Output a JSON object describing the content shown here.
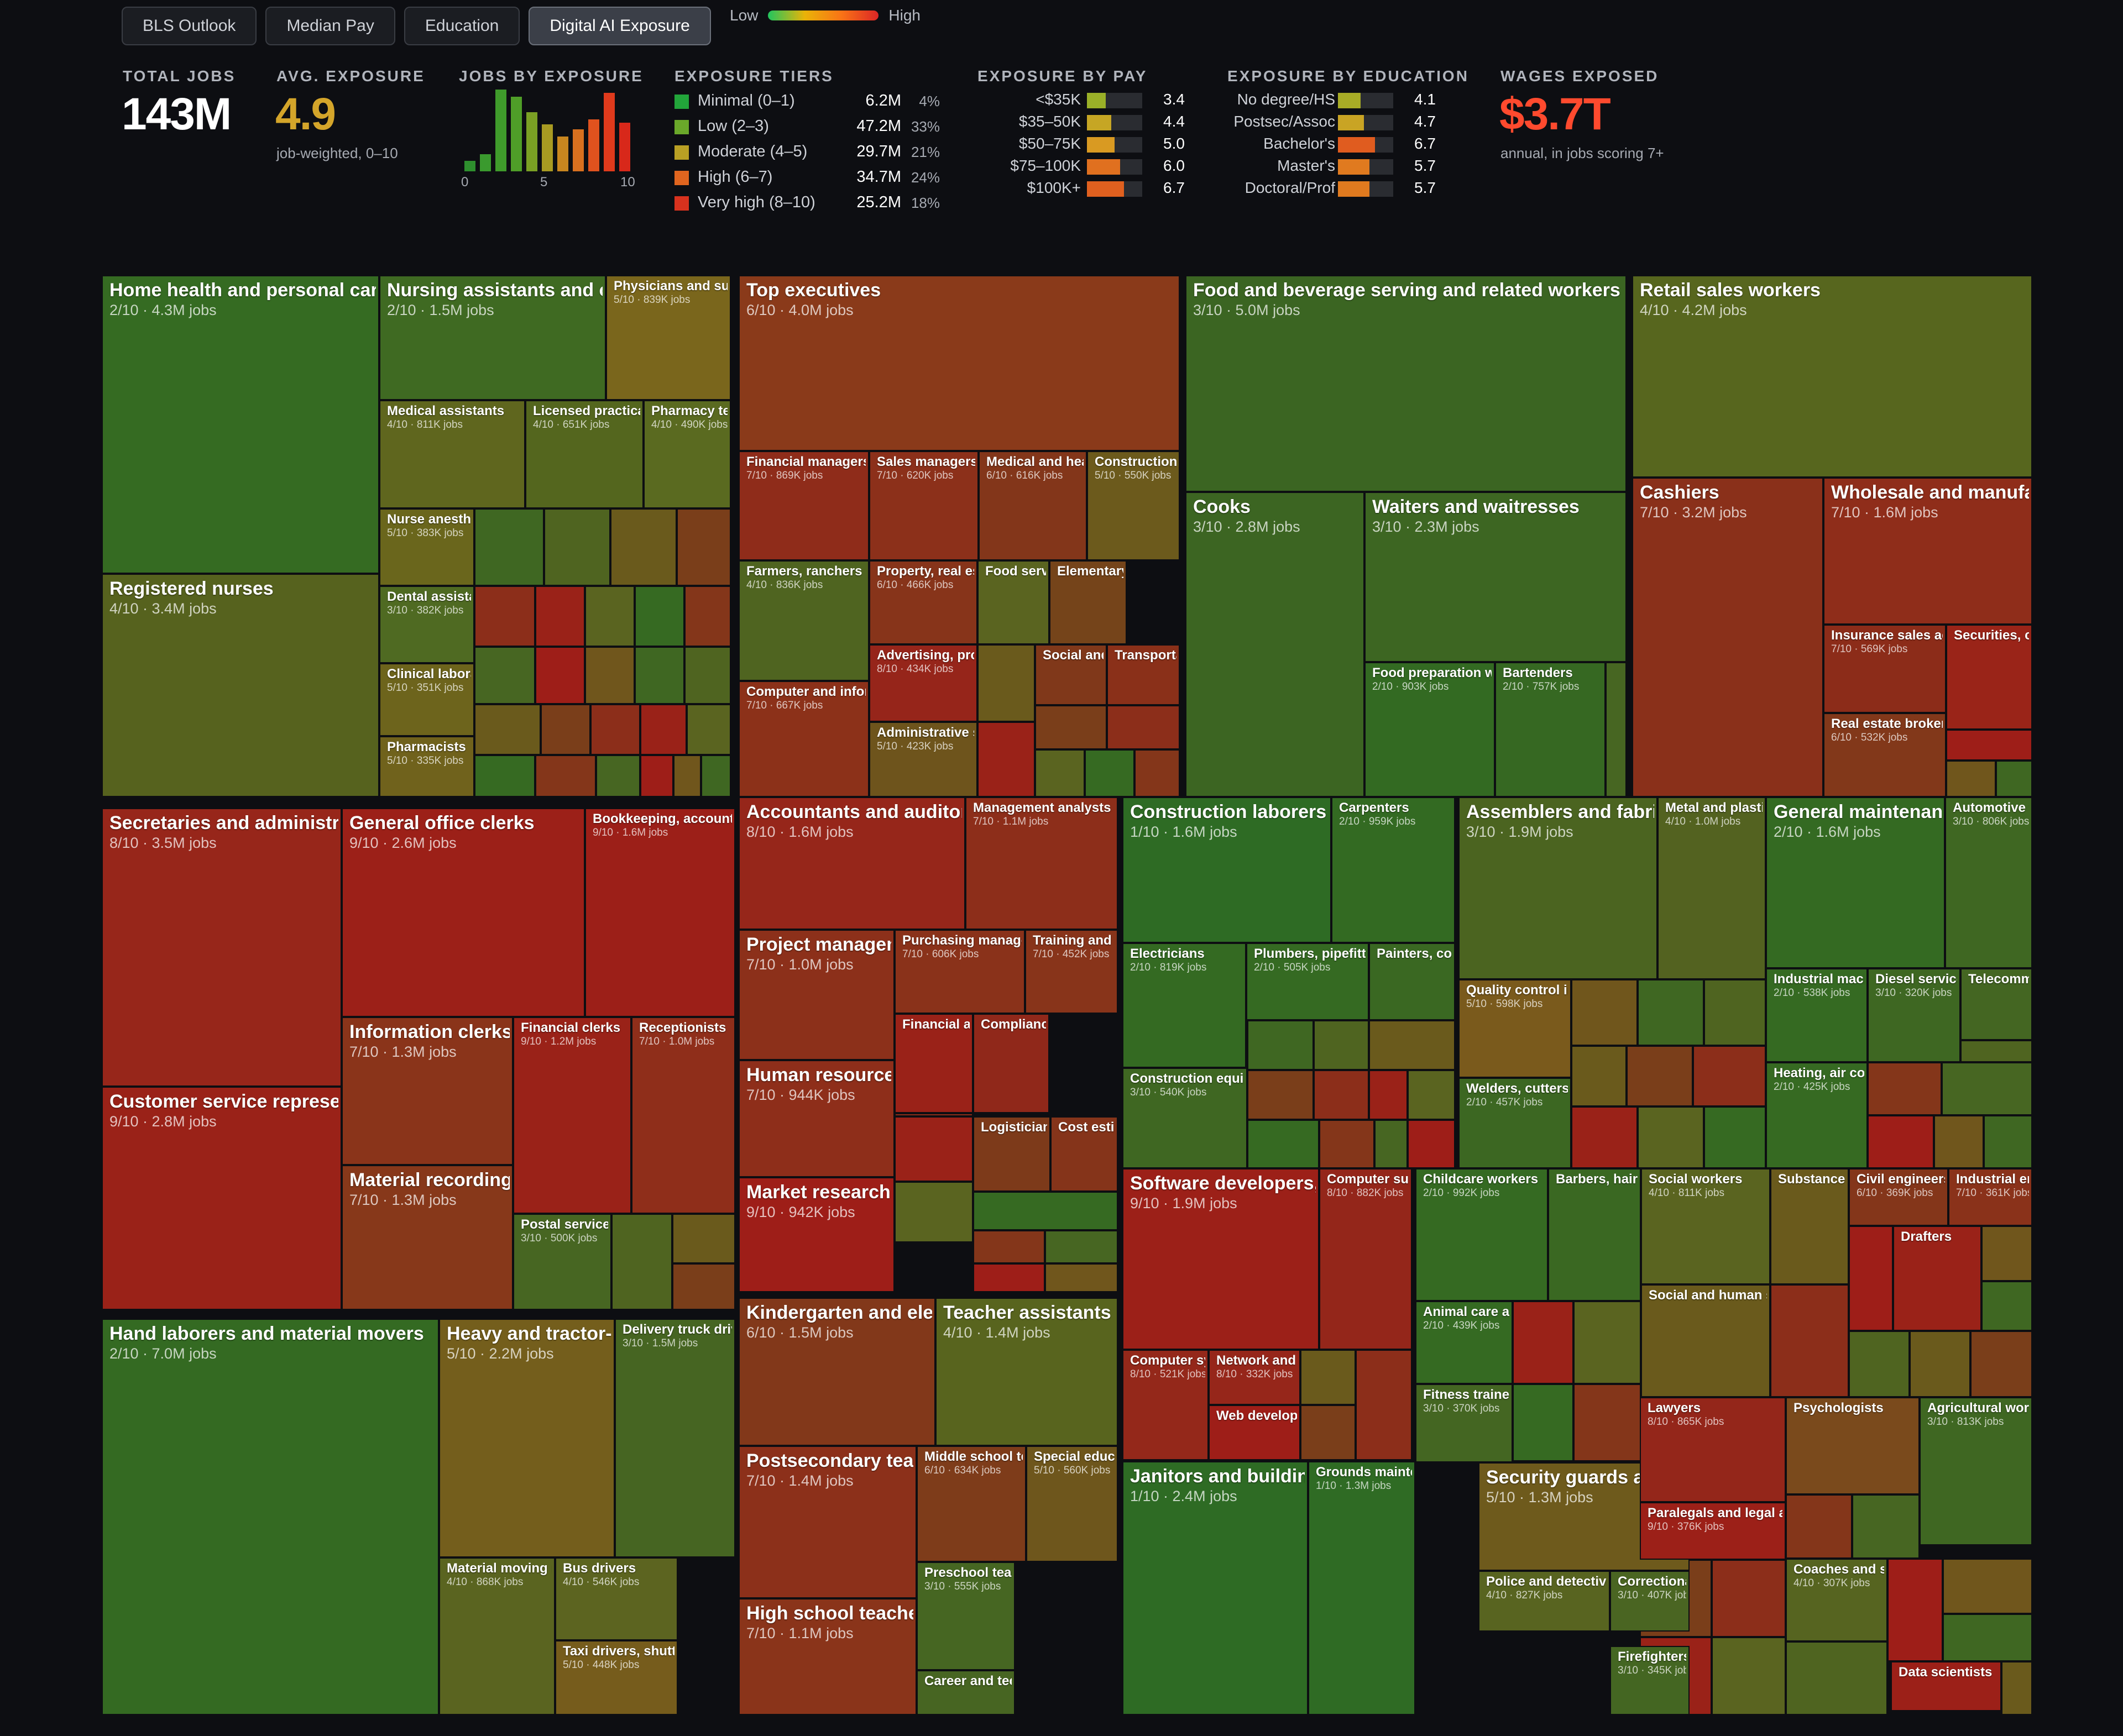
{
  "tabs": [
    {
      "label": "BLS Outlook",
      "active": false
    },
    {
      "label": "Median Pay",
      "active": false
    },
    {
      "label": "Education",
      "active": false
    },
    {
      "label": "Digital AI Exposure",
      "active": true
    }
  ],
  "legend": {
    "low": "Low",
    "high": "High"
  },
  "stats": {
    "total_jobs": {
      "label": "TOTAL JOBS",
      "value": "143M"
    },
    "avg_exposure": {
      "label": "AVG. EXPOSURE",
      "value": "4.9",
      "note": "job-weighted, 0–10"
    },
    "wages": {
      "label": "WAGES EXPOSED",
      "value": "$3.7T",
      "note": "annual, in jobs scoring 7+"
    }
  },
  "histogram": {
    "label": "JOBS BY EXPOSURE",
    "ticks": [
      "0",
      "5",
      "10"
    ],
    "values": [
      0.6,
      1.0,
      4.7,
      4.3,
      3.4,
      2.7,
      2.0,
      2.4,
      3.0,
      4.5,
      2.8
    ],
    "max": 4.7
  },
  "tiers": {
    "label": "EXPOSURE TIERS",
    "items": [
      {
        "name": "Minimal (0–1)",
        "jobs": "6.2M",
        "pct": "4%",
        "color": "#22a53a"
      },
      {
        "name": "Low (2–3)",
        "jobs": "47.2M",
        "pct": "33%",
        "color": "#6aa82a"
      },
      {
        "name": "Moderate (4–5)",
        "jobs": "29.7M",
        "pct": "21%",
        "color": "#b9a024"
      },
      {
        "name": "High (6–7)",
        "jobs": "34.7M",
        "pct": "24%",
        "color": "#e0651f"
      },
      {
        "name": "Very high (8–10)",
        "jobs": "25.2M",
        "pct": "18%",
        "color": "#d8321e"
      }
    ]
  },
  "by_pay": {
    "label": "EXPOSURE BY PAY",
    "items": [
      {
        "name": "<$35K",
        "value": "3.4",
        "score": 3.4,
        "color": "#9ab028"
      },
      {
        "name": "$35–50K",
        "value": "4.4",
        "score": 4.4,
        "color": "#c6a624"
      },
      {
        "name": "$50–75K",
        "value": "5.0",
        "score": 5.0,
        "color": "#d99a22"
      },
      {
        "name": "$75–100K",
        "value": "6.0",
        "score": 6.0,
        "color": "#e0701f"
      },
      {
        "name": "$100K+",
        "value": "6.7",
        "score": 6.7,
        "color": "#e0601f"
      }
    ]
  },
  "by_education": {
    "label": "EXPOSURE BY EDUCATION",
    "items": [
      {
        "name": "No degree/HS",
        "value": "4.1",
        "score": 4.1,
        "color": "#a8ac26"
      },
      {
        "name": "Postsec/Assoc",
        "value": "4.7",
        "score": 4.7,
        "color": "#c9a424"
      },
      {
        "name": "Bachelor's",
        "value": "6.7",
        "score": 6.7,
        "color": "#e05c1f"
      },
      {
        "name": "Master's",
        "value": "5.7",
        "score": 5.7,
        "color": "#e07a1f"
      },
      {
        "name": "Doctoral/Prof",
        "value": "5.7",
        "score": 5.7,
        "color": "#e07a1f"
      }
    ]
  },
  "tiles": [
    {
      "name": "Home health and personal care aides",
      "stat": "2/10 · 4.3M jobs",
      "color": "#356b22"
    },
    {
      "name": "Nursing assistants and orderlies",
      "stat": "2/10 · 1.5M jobs",
      "color": "#3f6a22"
    },
    {
      "name": "Physicians and surgeons",
      "stat": "5/10 · 839K jobs",
      "color": "#7a661c"
    },
    {
      "name": "Medical assistants",
      "stat": "4/10 · 811K jobs",
      "color": "#5f661e"
    },
    {
      "name": "Licensed practical nurses",
      "stat": "4/10 · 651K jobs",
      "color": "#54661e"
    },
    {
      "name": "Pharmacy technicians",
      "stat": "4/10 · 490K jobs",
      "color": "#5a6a20"
    },
    {
      "name": "Nurse anesthetists",
      "stat": "5/10 · 383K jobs",
      "color": "#6a661c"
    },
    {
      "name": "Dental assistants",
      "stat": "3/10 · 382K jobs",
      "color": "#4f6a22"
    },
    {
      "name": "Clinical laboratory technologists",
      "stat": "5/10 · 351K jobs",
      "color": "#6d641c"
    },
    {
      "name": "Pharmacists",
      "stat": "5/10 · 335K jobs",
      "color": "#70621c"
    },
    {
      "name": "Registered nurses",
      "stat": "4/10 · 3.4M jobs",
      "color": "#56621e"
    },
    {
      "name": "Top executives",
      "stat": "6/10 · 4.0M jobs",
      "color": "#8a3a1a"
    },
    {
      "name": "Financial managers",
      "stat": "7/10 · 869K jobs",
      "color": "#8f2c1a"
    },
    {
      "name": "Sales managers",
      "stat": "7/10 · 620K jobs",
      "color": "#8c301a"
    },
    {
      "name": "Medical and health services managers",
      "stat": "6/10 · 616K jobs",
      "color": "#83361a"
    },
    {
      "name": "Construction managers",
      "stat": "5/10 · 550K jobs",
      "color": "#6c5a1c"
    },
    {
      "name": "Farmers, ranchers",
      "stat": "4/10 · 836K jobs",
      "color": "#4f6420"
    },
    {
      "name": "Property, real estate managers",
      "stat": "6/10 · 466K jobs",
      "color": "#87341a"
    },
    {
      "name": "Food service managers",
      "stat": "",
      "color": "#5a6420"
    },
    {
      "name": "Elementary school principals",
      "stat": "",
      "color": "#75441a"
    },
    {
      "name": "Advertising, promotions managers",
      "stat": "8/10 · 434K jobs",
      "color": "#96251a"
    },
    {
      "name": "Social and community managers",
      "stat": "",
      "color": "#80381a"
    },
    {
      "name": "Transportation managers",
      "stat": "",
      "color": "#8a3019"
    },
    {
      "name": "Computer and information systems managers",
      "stat": "7/10 · 667K jobs",
      "color": "#8c3119"
    },
    {
      "name": "Administrative services managers",
      "stat": "5/10 · 423K jobs",
      "color": "#6e541c"
    },
    {
      "name": "Food and beverage serving and related workers",
      "stat": "3/10 · 5.0M jobs",
      "color": "#3b6522"
    },
    {
      "name": "Cooks",
      "stat": "3/10 · 2.8M jobs",
      "color": "#3c6522"
    },
    {
      "name": "Waiters and waitresses",
      "stat": "3/10 · 2.3M jobs",
      "color": "#3d6622"
    },
    {
      "name": "Food preparation workers",
      "stat": "2/10 · 903K jobs",
      "color": "#336a22"
    },
    {
      "name": "Bartenders",
      "stat": "2/10 · 757K jobs",
      "color": "#366822"
    },
    {
      "name": "Retail sales workers",
      "stat": "4/10 · 4.2M jobs",
      "color": "#57661e"
    },
    {
      "name": "Cashiers",
      "stat": "7/10 · 3.2M jobs",
      "color": "#8a301a"
    },
    {
      "name": "Wholesale and manufacturing sales reps",
      "stat": "7/10 · 1.6M jobs",
      "color": "#8f2d1a"
    },
    {
      "name": "Insurance sales agents",
      "stat": "7/10 · 569K jobs",
      "color": "#8c2c19"
    },
    {
      "name": "Securities, commodities agents",
      "stat": "",
      "color": "#9a2418"
    },
    {
      "name": "Real estate brokers",
      "stat": "6/10 · 532K jobs",
      "color": "#82381a"
    },
    {
      "name": "Secretaries and administrative assistants",
      "stat": "8/10 · 3.5M jobs",
      "color": "#97261a"
    },
    {
      "name": "General office clerks",
      "stat": "9/10 · 2.6M jobs",
      "color": "#9c2018"
    },
    {
      "name": "Bookkeeping, accounting clerks",
      "stat": "9/10 · 1.6M jobs",
      "color": "#9c1f18"
    },
    {
      "name": "Information clerks",
      "stat": "7/10 · 1.3M jobs",
      "color": "#8a341a"
    },
    {
      "name": "Financial clerks",
      "stat": "9/10 · 1.2M jobs",
      "color": "#9a2218"
    },
    {
      "name": "Receptionists",
      "stat": "7/10 · 1.0M jobs",
      "color": "#8f2e1a"
    },
    {
      "name": "Customer service representatives",
      "stat": "9/10 · 2.8M jobs",
      "color": "#9a2218"
    },
    {
      "name": "Material recording clerks",
      "stat": "7/10 · 1.3M jobs",
      "color": "#87381a"
    },
    {
      "name": "Postal service workers",
      "stat": "3/10 · 500K jobs",
      "color": "#476622"
    },
    {
      "name": "Accountants and auditors",
      "stat": "8/10 · 1.6M jobs",
      "color": "#96261a"
    },
    {
      "name": "Management analysts",
      "stat": "7/10 · 1.1M jobs",
      "color": "#8d2e1a"
    },
    {
      "name": "Project management specialists",
      "stat": "7/10 · 1.0M jobs",
      "color": "#8c301a"
    },
    {
      "name": "Purchasing managers",
      "stat": "7/10 · 606K jobs",
      "color": "#8a321a"
    },
    {
      "name": "Training and development",
      "stat": "7/10 · 452K jobs",
      "color": "#88341a"
    },
    {
      "name": "Financial analysts",
      "stat": "",
      "color": "#9a2218"
    },
    {
      "name": "Compliance officers",
      "stat": "",
      "color": "#90281a"
    },
    {
      "name": "Human resources specialists",
      "stat": "7/10 · 944K jobs",
      "color": "#8e2e1a"
    },
    {
      "name": "Logisticians",
      "stat": "",
      "color": "#7d3a1a"
    },
    {
      "name": "Cost estimators",
      "stat": "",
      "color": "#85341a"
    },
    {
      "name": "Market research analysts",
      "stat": "9/10 · 942K jobs",
      "color": "#9e1e18"
    },
    {
      "name": "Construction laborers",
      "stat": "1/10 · 1.6M jobs",
      "color": "#2e6b24"
    },
    {
      "name": "Carpenters",
      "stat": "2/10 · 959K jobs",
      "color": "#336a22"
    },
    {
      "name": "Electricians",
      "stat": "2/10 · 819K jobs",
      "color": "#346a22"
    },
    {
      "name": "Plumbers, pipefitters",
      "stat": "2/10 · 505K jobs",
      "color": "#356a22"
    },
    {
      "name": "Painters, construction",
      "stat": "",
      "color": "#3a6822"
    },
    {
      "name": "Construction equipment operators",
      "stat": "3/10 · 540K jobs",
      "color": "#3f6722"
    },
    {
      "name": "Assemblers and fabricators",
      "stat": "3/10 · 1.9M jobs",
      "color": "#4b6420"
    },
    {
      "name": "Metal and plastic machine workers",
      "stat": "4/10 · 1.0M jobs",
      "color": "#536220"
    },
    {
      "name": "Quality control inspectors",
      "stat": "5/10 · 598K jobs",
      "color": "#7a5a1c"
    },
    {
      "name": "Welders, cutters",
      "stat": "2/10 · 457K jobs",
      "color": "#3c6722"
    },
    {
      "name": "General maintenance workers",
      "stat": "2/10 · 1.6M jobs",
      "color": "#346a22"
    },
    {
      "name": "Automotive technicians",
      "stat": "3/10 · 806K jobs",
      "color": "#3f6722"
    },
    {
      "name": "Industrial machinery mechanics",
      "stat": "2/10 · 538K jobs",
      "color": "#356a22"
    },
    {
      "name": "Diesel service technicians",
      "stat": "3/10 · 320K jobs",
      "color": "#3e6722"
    },
    {
      "name": "Telecommunications technicians",
      "stat": "",
      "color": "#446622"
    },
    {
      "name": "Heating, air conditioning mechanics",
      "stat": "2/10 · 425K jobs",
      "color": "#366a22"
    },
    {
      "name": "Hand laborers and material movers",
      "stat": "2/10 · 7.0M jobs",
      "color": "#346a22"
    },
    {
      "name": "Heavy and tractor-trailer truck drivers",
      "stat": "5/10 · 2.2M jobs",
      "color": "#745e1c"
    },
    {
      "name": "Delivery truck drivers",
      "stat": "3/10 · 1.5M jobs",
      "color": "#466522"
    },
    {
      "name": "Material moving machine operators",
      "stat": "4/10 · 868K jobs",
      "color": "#5a6420"
    },
    {
      "name": "Bus drivers",
      "stat": "4/10 · 546K jobs",
      "color": "#5c6420"
    },
    {
      "name": "Taxi drivers, shuttle drivers",
      "stat": "5/10 · 448K jobs",
      "color": "#765c1c"
    },
    {
      "name": "Kindergarten and elementary school teachers",
      "stat": "6/10 · 1.5M jobs",
      "color": "#82381a"
    },
    {
      "name": "Teacher assistants",
      "stat": "4/10 · 1.4M jobs",
      "color": "#58641e"
    },
    {
      "name": "Postsecondary teachers",
      "stat": "7/10 · 1.4M jobs",
      "color": "#8c301a"
    },
    {
      "name": "Middle school teachers",
      "stat": "6/10 · 634K jobs",
      "color": "#7e3c1a"
    },
    {
      "name": "Special education teachers",
      "stat": "5/10 · 560K jobs",
      "color": "#6e561c"
    },
    {
      "name": "Preschool teachers",
      "stat": "3/10 · 555K jobs",
      "color": "#466622"
    },
    {
      "name": "High school teachers",
      "stat": "7/10 · 1.1M jobs",
      "color": "#8a341a"
    },
    {
      "name": "Career and technical education teachers",
      "stat": "",
      "color": "#476522"
    },
    {
      "name": "Software developers, QA",
      "stat": "9/10 · 1.9M jobs",
      "color": "#9c2018"
    },
    {
      "name": "Computer support specialists",
      "stat": "8/10 · 882K jobs",
      "color": "#94261a"
    },
    {
      "name": "Computer systems analysts",
      "stat": "8/10 · 521K jobs",
      "color": "#94281a"
    },
    {
      "name": "Network and computer admins",
      "stat": "8/10 · 332K jobs",
      "color": "#96261a"
    },
    {
      "name": "Web developers",
      "stat": "",
      "color": "#9e1e18"
    },
    {
      "name": "Janitors and building cleaners",
      "stat": "1/10 · 2.4M jobs",
      "color": "#2e6b24"
    },
    {
      "name": "Grounds maintenance workers",
      "stat": "1/10 · 1.3M jobs",
      "color": "#2f6b24"
    },
    {
      "name": "Childcare workers",
      "stat": "2/10 · 992K jobs",
      "color": "#356a22"
    },
    {
      "name": "Barbers, hairstylists",
      "stat": "",
      "color": "#3a6822"
    },
    {
      "name": "Animal care and service workers",
      "stat": "2/10 · 439K jobs",
      "color": "#356a22"
    },
    {
      "name": "Fitness trainers",
      "stat": "3/10 · 370K jobs",
      "color": "#446622"
    },
    {
      "name": "Social workers",
      "stat": "4/10 · 811K jobs",
      "color": "#5a6420"
    },
    {
      "name": "Substance abuse counselors",
      "stat": "",
      "color": "#6a5a1c"
    },
    {
      "name": "Social and human service assistants",
      "stat": "",
      "color": "#6a5a1c"
    },
    {
      "name": "Civil engineers",
      "stat": "6/10 · 369K jobs",
      "color": "#84361a"
    },
    {
      "name": "Industrial engineers",
      "stat": "7/10 · 361K jobs",
      "color": "#8a321a"
    },
    {
      "name": "Drafters",
      "stat": "",
      "color": "#9a2218"
    },
    {
      "name": "Security guards and gambling surveillance",
      "stat": "5/10 · 1.3M jobs",
      "color": "#6e5a1c"
    },
    {
      "name": "Police and detectives",
      "stat": "4/10 · 827K jobs",
      "color": "#586420"
    },
    {
      "name": "Correctional officers",
      "stat": "3/10 · 407K jobs",
      "color": "#4a6522"
    },
    {
      "name": "Firefighters",
      "stat": "3/10 · 345K jobs",
      "color": "#446622"
    },
    {
      "name": "Lawyers",
      "stat": "8/10 · 865K jobs",
      "color": "#94261a"
    },
    {
      "name": "Paralegals and legal assistants",
      "stat": "9/10 · 376K jobs",
      "color": "#9c2018"
    },
    {
      "name": "Psychologists",
      "stat": "",
      "color": "#7a4a1c"
    },
    {
      "name": "Agricultural workers",
      "stat": "3/10 · 813K jobs",
      "color": "#3f6722"
    },
    {
      "name": "Coaches and scouts",
      "stat": "4/10 · 307K jobs",
      "color": "#566420"
    },
    {
      "name": "Data scientists",
      "stat": "",
      "color": "#9c2018"
    }
  ],
  "filler_colors": [
    "#3f6722",
    "#4f6420",
    "#6a5a1c",
    "#7a3e1a",
    "#8c2e1a",
    "#9a2218",
    "#5a6420",
    "#366a22",
    "#84361a",
    "#476622",
    "#9e1e18",
    "#70561c"
  ]
}
